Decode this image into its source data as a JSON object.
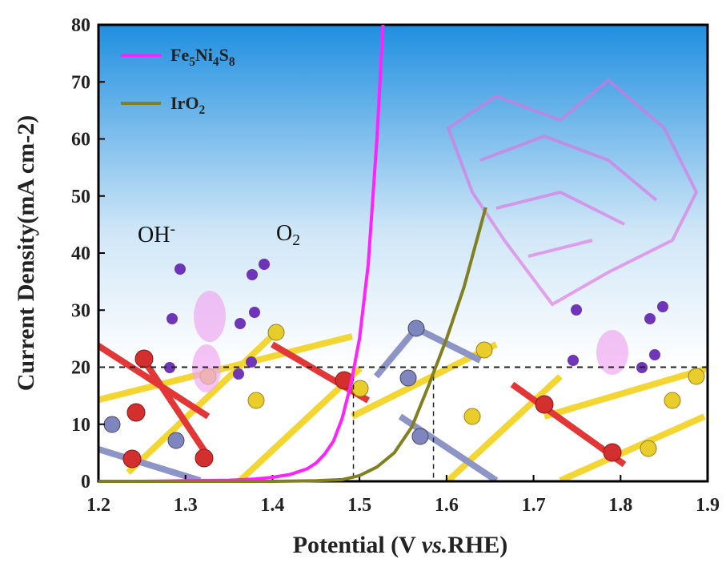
{
  "chart_data": {
    "type": "line",
    "xlabel": "Potential (V vs.RHE)",
    "ylabel": "Current Density(mA cm-2)",
    "xlim": [
      1.2,
      1.9
    ],
    "xticks": [
      1.2,
      1.3,
      1.4,
      1.5,
      1.6,
      1.7,
      1.8,
      1.9
    ],
    "ylim": [
      0,
      80
    ],
    "yticks": [
      0,
      10,
      20,
      30,
      40,
      50,
      60,
      70,
      80
    ],
    "hline": 20,
    "vlines": [
      1.493,
      1.585
    ],
    "legend": "upper left",
    "annotations": [
      "OH-",
      "O2"
    ],
    "series": [
      {
        "name": "Fe5Ni4S8",
        "color": "#ff22ff",
        "x": [
          1.2,
          1.25,
          1.3,
          1.35,
          1.38,
          1.4,
          1.42,
          1.44,
          1.45,
          1.46,
          1.47,
          1.48,
          1.49,
          1.5,
          1.51,
          1.52,
          1.527
        ],
        "values": [
          0,
          0,
          0.1,
          0.2,
          0.4,
          0.7,
          1.2,
          2.2,
          3.2,
          4.8,
          7,
          11,
          17,
          25,
          38,
          60,
          80
        ]
      },
      {
        "name": "IrO2",
        "color": "#808020",
        "x": [
          1.2,
          1.3,
          1.4,
          1.45,
          1.48,
          1.5,
          1.52,
          1.54,
          1.56,
          1.58,
          1.6,
          1.62,
          1.645
        ],
        "values": [
          0,
          0,
          0,
          0.1,
          0.3,
          1,
          2.5,
          5,
          9.5,
          17,
          25,
          34,
          48
        ]
      }
    ]
  }
}
